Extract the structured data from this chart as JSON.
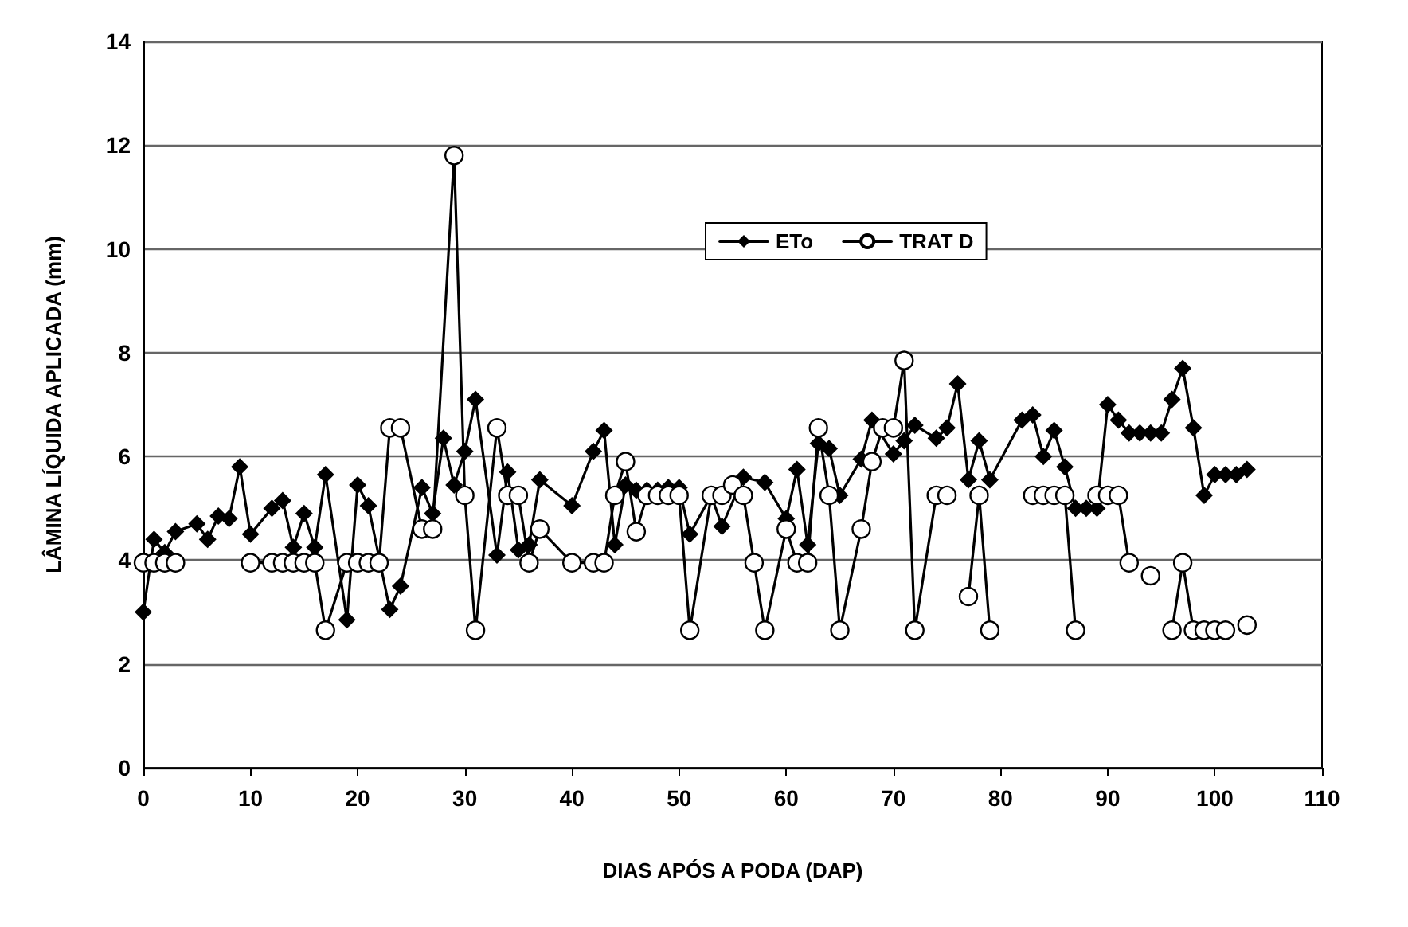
{
  "chart_data": {
    "type": "line",
    "xlabel": "DIAS APÓS A PODA (DAP)",
    "ylabel": "LÂMINA LÍQUIDA APLICADA (mm)",
    "xlim": [
      0,
      110
    ],
    "xticks": [
      0,
      10,
      20,
      30,
      40,
      50,
      60,
      70,
      80,
      90,
      100,
      110
    ],
    "ylim": [
      0,
      14
    ],
    "yticks": [
      0,
      2,
      4,
      6,
      8,
      10,
      12,
      14
    ],
    "grid": "y",
    "legend": "top",
    "series": [
      {
        "name": "ETo",
        "color": "#000000",
        "marker": "diamond",
        "x": [
          0,
          1,
          2,
          3,
          5,
          6,
          7,
          8,
          9,
          10,
          12,
          13,
          14,
          15,
          16,
          17,
          19,
          20,
          21,
          23,
          24,
          26,
          27,
          28,
          29,
          30,
          31,
          33,
          34,
          35,
          36,
          37,
          40,
          42,
          43,
          44,
          45,
          46,
          47,
          48,
          49,
          50,
          51,
          53,
          54,
          56,
          58,
          60,
          61,
          62,
          63,
          64,
          65,
          67,
          68,
          70,
          71,
          72,
          74,
          75,
          76,
          77,
          78,
          79,
          82,
          83,
          84,
          85,
          86,
          87,
          88,
          89,
          90,
          91,
          92,
          93,
          94,
          95,
          96,
          97,
          98,
          99,
          100,
          101,
          102,
          103
        ],
        "values": [
          3.0,
          4.4,
          4.15,
          4.55,
          4.7,
          4.4,
          4.85,
          4.8,
          5.8,
          4.5,
          5.0,
          5.15,
          4.25,
          4.9,
          4.25,
          5.65,
          2.85,
          5.45,
          5.05,
          3.05,
          3.5,
          5.4,
          4.9,
          6.35,
          5.45,
          6.1,
          7.1,
          4.1,
          5.7,
          4.2,
          4.3,
          5.55,
          5.05,
          6.1,
          6.5,
          4.3,
          5.45,
          5.35,
          5.35,
          5.35,
          5.4,
          5.4,
          4.5,
          5.25,
          4.65,
          5.6,
          5.5,
          4.8,
          5.75,
          4.3,
          6.25,
          6.15,
          5.25,
          5.95,
          6.7,
          6.05,
          6.3,
          6.6,
          6.35,
          6.55,
          7.4,
          5.55,
          6.3,
          5.55,
          6.7,
          6.8,
          6.0,
          6.5,
          5.8,
          5.0,
          5.0,
          5.0,
          7.0,
          6.7,
          6.45,
          6.45,
          6.45,
          6.45,
          7.1,
          7.7,
          6.55,
          5.25,
          5.65,
          5.65,
          5.65,
          5.75
        ]
      },
      {
        "name": "TRAT D",
        "color": "#000000",
        "marker": "circle",
        "x": [
          0,
          1,
          2,
          3,
          6,
          10,
          12,
          13,
          14,
          15,
          16,
          17,
          19,
          20,
          21,
          22,
          23,
          24,
          26,
          27,
          29,
          30,
          31,
          33,
          34,
          35,
          36,
          37,
          40,
          42,
          43,
          44,
          45,
          46,
          47,
          48,
          49,
          50,
          51,
          53,
          54,
          55,
          56,
          57,
          58,
          60,
          61,
          62,
          63,
          64,
          65,
          67,
          68,
          69,
          70,
          71,
          72,
          74,
          75,
          76,
          77,
          78,
          79,
          81,
          83,
          84,
          85,
          86,
          87,
          88,
          89,
          90,
          91,
          92,
          93,
          94,
          95,
          96,
          97,
          98,
          99,
          100,
          101,
          102,
          103
        ],
        "values": [
          3.95,
          3.95,
          3.95,
          3.95,
          null,
          3.95,
          3.95,
          3.95,
          3.95,
          3.95,
          3.95,
          2.65,
          3.95,
          3.95,
          3.95,
          3.95,
          6.55,
          6.55,
          4.6,
          4.6,
          11.8,
          5.25,
          2.65,
          6.55,
          5.25,
          5.25,
          3.95,
          4.6,
          3.95,
          3.95,
          3.95,
          5.25,
          5.9,
          4.55,
          5.25,
          5.25,
          5.25,
          5.25,
          2.65,
          5.25,
          5.25,
          5.45,
          5.25,
          3.95,
          2.65,
          4.6,
          3.95,
          3.95,
          6.55,
          5.25,
          2.65,
          4.6,
          5.9,
          6.55,
          6.55,
          7.85,
          2.65,
          5.25,
          5.25,
          null,
          3.3,
          5.25,
          2.65,
          null,
          5.25,
          5.25,
          5.25,
          5.25,
          2.65,
          null,
          5.25,
          5.25,
          5.25,
          3.95,
          null,
          3.7,
          null,
          2.65,
          3.95,
          2.65,
          2.65,
          2.65,
          2.65,
          null,
          2.75
        ]
      }
    ]
  }
}
